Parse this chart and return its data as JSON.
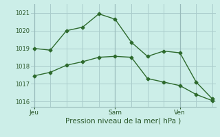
{
  "title": "Pression niveau de la mer( hPa )",
  "bg_color": "#cceee8",
  "grid_color": "#aacccc",
  "line_color": "#2d6a2d",
  "line1_x": [
    0,
    1,
    2,
    3,
    4,
    5,
    6,
    7,
    8,
    9,
    10,
    11
  ],
  "line1_y": [
    1019.0,
    1018.9,
    1020.0,
    1020.2,
    1020.95,
    1020.65,
    1019.35,
    1018.55,
    1018.85,
    1018.75,
    1017.1,
    1016.15
  ],
  "line2_x": [
    0,
    1,
    2,
    3,
    4,
    5,
    6,
    7,
    8,
    9,
    10,
    11
  ],
  "line2_y": [
    1017.45,
    1017.65,
    1018.05,
    1018.25,
    1018.5,
    1018.55,
    1018.5,
    1017.3,
    1017.1,
    1016.9,
    1016.4,
    1016.05
  ],
  "yticks": [
    1016,
    1017,
    1018,
    1019,
    1020,
    1021
  ],
  "ylim": [
    1015.7,
    1021.5
  ],
  "xlim": [
    -0.2,
    11.2
  ],
  "xtick_positions": [
    0,
    5,
    9
  ],
  "xtick_labels": [
    "Jeu",
    "Sam",
    "Ven"
  ],
  "vline_x": [
    0,
    5,
    9
  ],
  "num_xgrid": 11,
  "marker": "D",
  "markersize": 2.5,
  "linewidth": 1.0,
  "ytick_fontsize": 6,
  "xtick_fontsize": 6.5,
  "xlabel_fontsize": 7.5
}
